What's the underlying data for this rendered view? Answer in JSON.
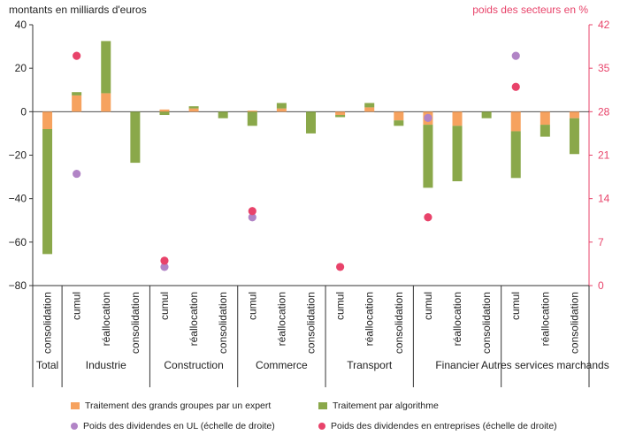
{
  "chart_data": {
    "type": "bar",
    "y_left_label": "montants en milliards d'euros",
    "y_right_label": "poids des secteurs en %",
    "ylim_left": [
      -80,
      40
    ],
    "yticks_left": [
      "40",
      "20",
      "0",
      "−20",
      "−40",
      "−60",
      "−80"
    ],
    "ylim_right": [
      0,
      42
    ],
    "yticks_right": [
      "42",
      "35",
      "28",
      "21",
      "14",
      "7",
      "0"
    ],
    "groups": [
      {
        "name": "Total",
        "categories": [
          "consolidation"
        ]
      },
      {
        "name": "Industrie",
        "categories": [
          "cumul",
          "réallocation",
          "consolidation"
        ]
      },
      {
        "name": "Construction",
        "categories": [
          "cumul",
          "réallocation",
          "consolidation"
        ]
      },
      {
        "name": "Commerce",
        "categories": [
          "cumul",
          "réallocation",
          "consolidation"
        ]
      },
      {
        "name": "Transport",
        "categories": [
          "cumul",
          "réallocation",
          "consolidation"
        ]
      },
      {
        "name": "Financier",
        "categories": [
          "cumul",
          "réallocation",
          "consolidation"
        ]
      },
      {
        "name": "Autres services marchands",
        "categories": [
          "cumul",
          "réallocation",
          "consolidation"
        ]
      }
    ],
    "series": [
      {
        "name": "Traitement des  grands groupes par un expert",
        "color": "#f6a25f",
        "values": [
          -8,
          7.5,
          8.5,
          0,
          1,
          1.5,
          0,
          0.5,
          1.5,
          0,
          -1.5,
          2,
          -4,
          -6,
          -6.5,
          0,
          -9,
          -6,
          -3
        ]
      },
      {
        "name": "Traitement par algorithme",
        "color": "#8aa84a",
        "values": [
          -57.5,
          1.5,
          24,
          -23.5,
          -1.5,
          1,
          -3,
          -6.5,
          2.5,
          -10,
          -1,
          2,
          -2.5,
          -29,
          -25.5,
          -3,
          -21.5,
          -5.5,
          -16.5
        ]
      },
      {
        "name": "Poids des dividendes en UL (échelle de droite)",
        "color": "#b184c6",
        "type": "scatter",
        "points": [
          {
            "index": 1,
            "value": 18
          },
          {
            "index": 4,
            "value": 3
          },
          {
            "index": 7,
            "value": 11
          },
          {
            "index": 13,
            "value": 27
          },
          {
            "index": 16,
            "value": 37
          }
        ]
      },
      {
        "name": "Poids des dividendes en entreprises (échelle de droite)",
        "color": "#e8436a",
        "type": "scatter",
        "points": [
          {
            "index": 1,
            "value": 37
          },
          {
            "index": 4,
            "value": 4
          },
          {
            "index": 7,
            "value": 12
          },
          {
            "index": 10,
            "value": 3
          },
          {
            "index": 13,
            "value": 11
          },
          {
            "index": 16,
            "value": 32
          }
        ]
      }
    ]
  }
}
